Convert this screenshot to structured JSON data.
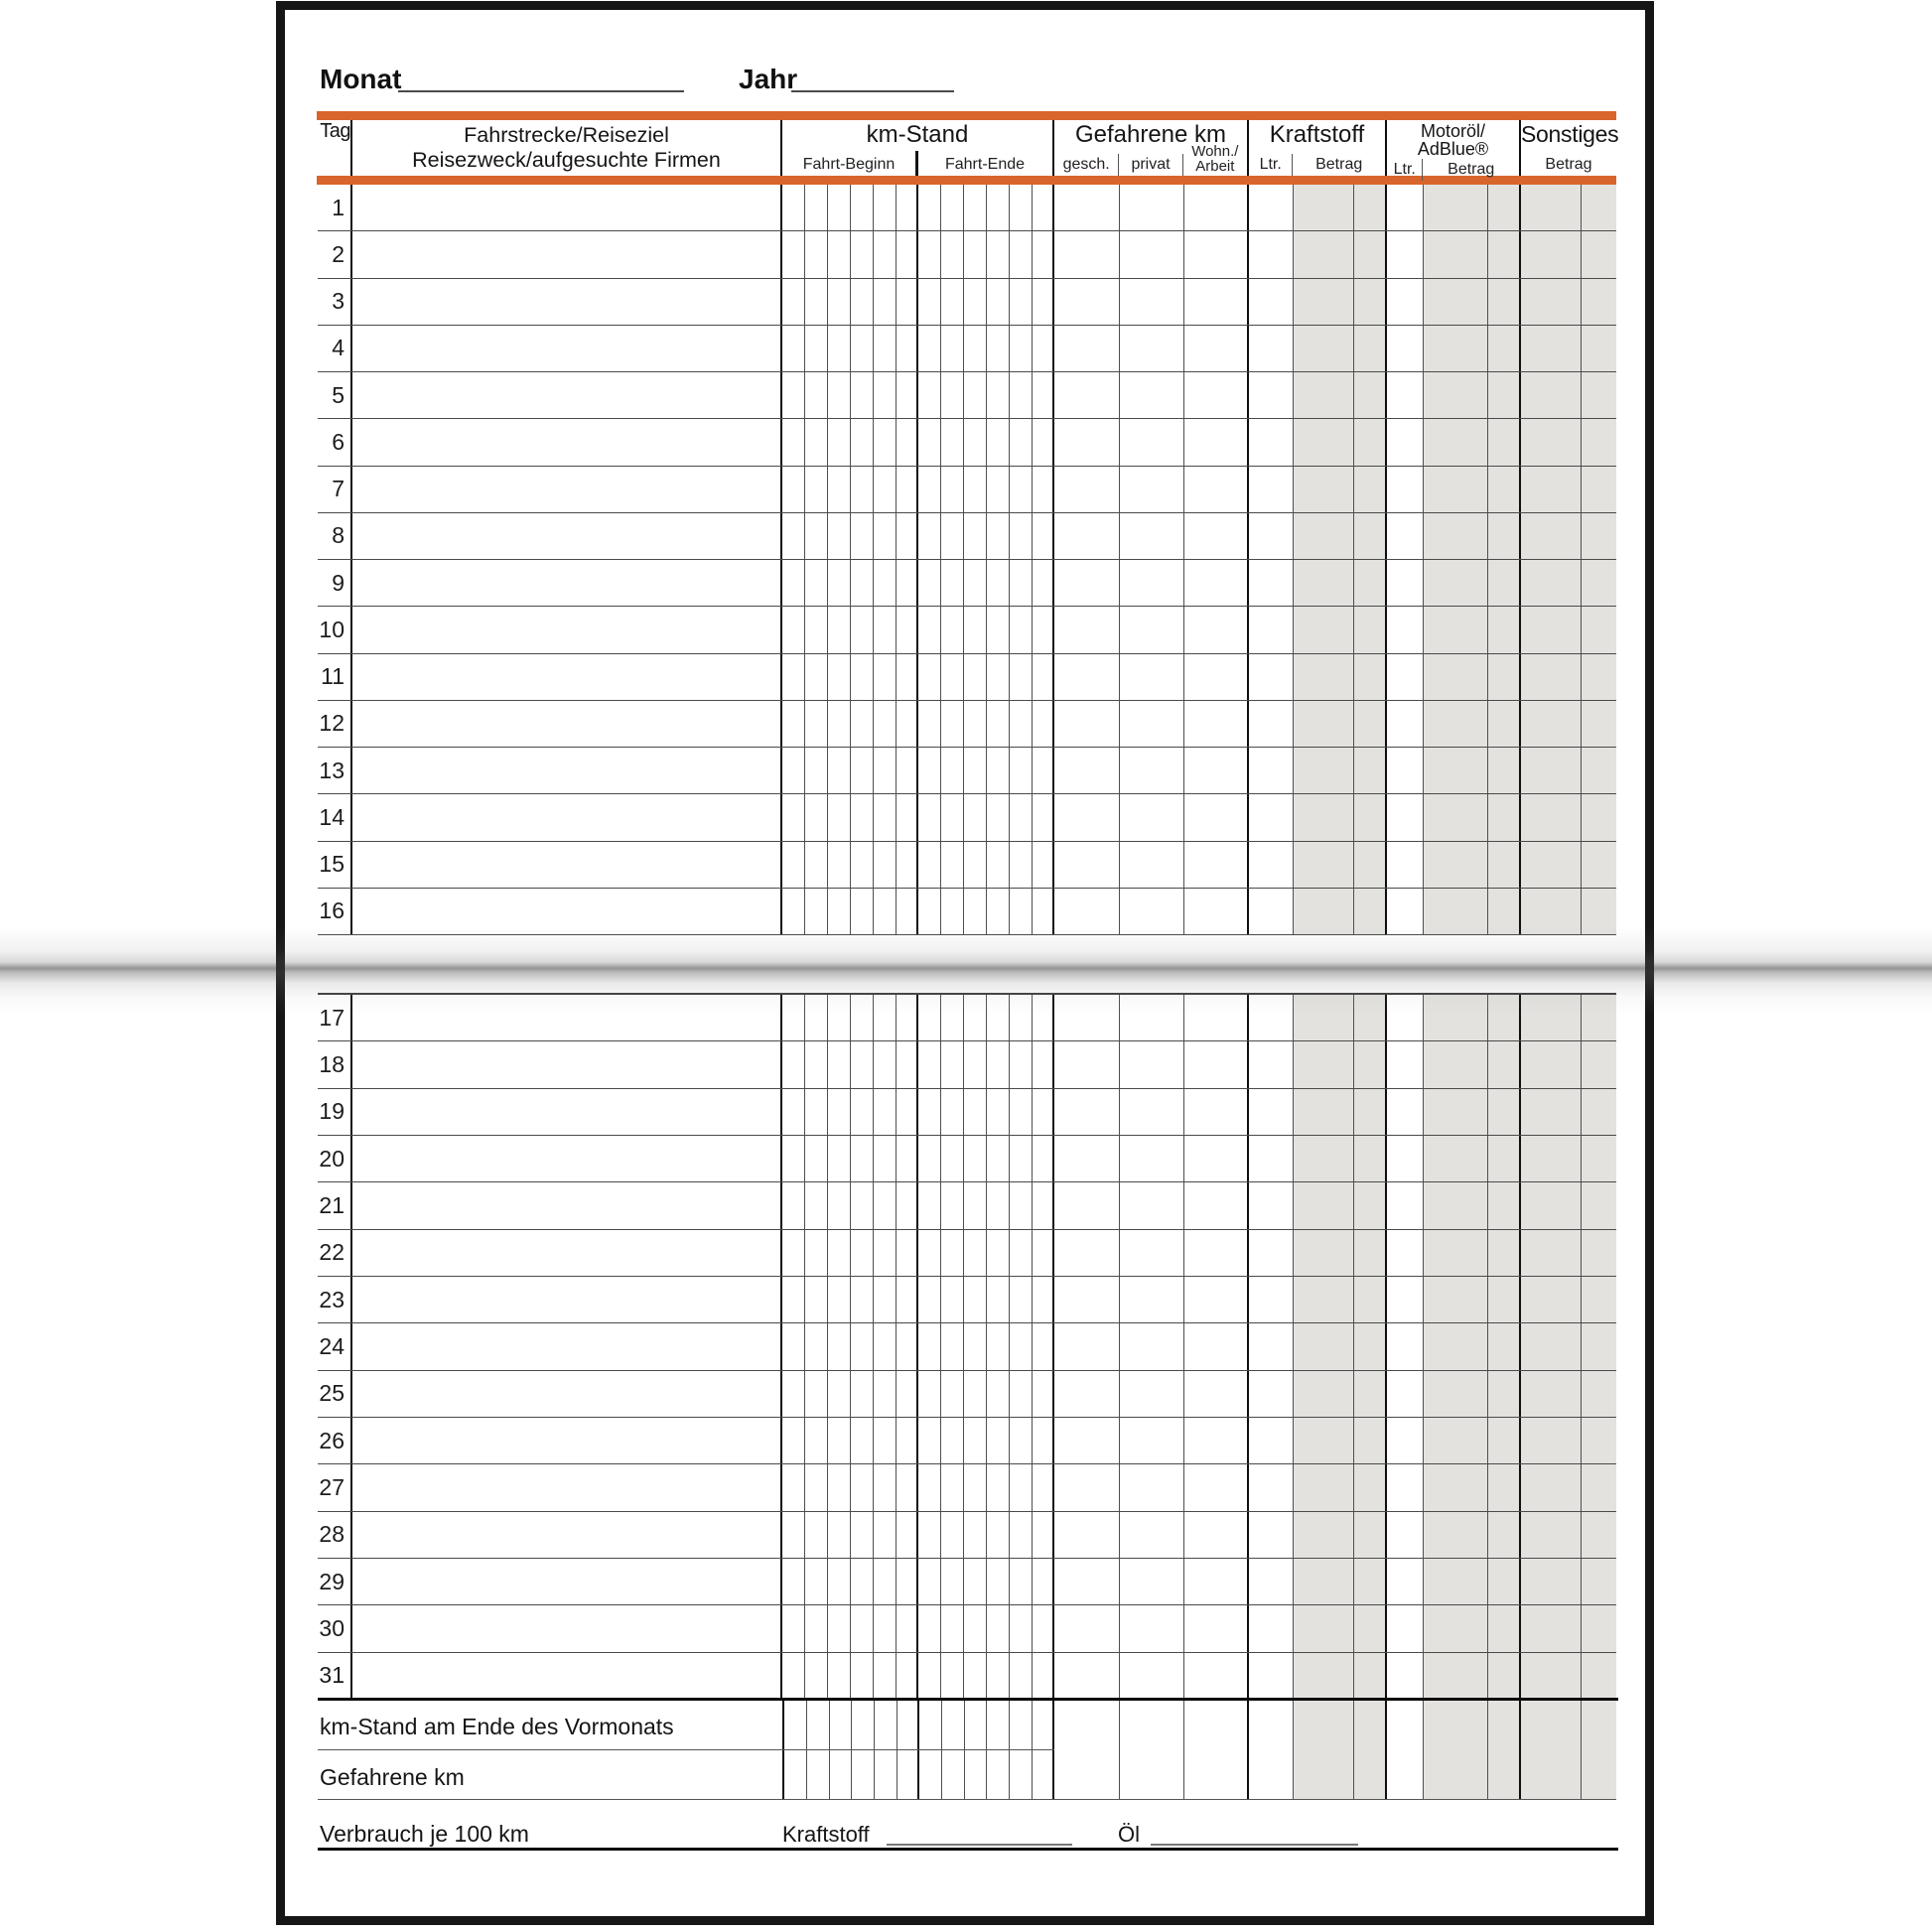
{
  "form": {
    "monat_label": "Monat",
    "jahr_label": "Jahr"
  },
  "header": {
    "tag": "Tag",
    "fahrstrecke_line1": "Fahrstrecke/Reiseziel",
    "fahrstrecke_line2": "Reisezweck/aufgesuchte Firmen",
    "km_stand": "km-Stand",
    "fahrt_beginn": "Fahrt-Beginn",
    "fahrt_ende": "Fahrt-Ende",
    "gefahrene_km": "Gefahrene km",
    "gesch": "gesch.",
    "privat": "privat",
    "wohn_arbeit_line1": "Wohn./",
    "wohn_arbeit_line2": "Arbeit",
    "kraftstoff": "Kraftstoff",
    "ltr": "Ltr.",
    "betrag": "Betrag",
    "motoroel_line1": "Motoröl/",
    "motoroel_line2": "AdBlue®",
    "sonstiges": "Sonstiges"
  },
  "days_top": [
    "1",
    "2",
    "3",
    "4",
    "5",
    "6",
    "7",
    "8",
    "9",
    "10",
    "11",
    "12",
    "13",
    "14",
    "15",
    "16"
  ],
  "days_bottom": [
    "17",
    "18",
    "19",
    "20",
    "21",
    "22",
    "23",
    "24",
    "25",
    "26",
    "27",
    "28",
    "29",
    "30",
    "31"
  ],
  "footer": {
    "km_stand_vormonat": "km-Stand am Ende des Vormonats",
    "gefahrene_km": "Gefahrene km",
    "verbrauch_je_100km": "Verbrauch je 100 km",
    "kraftstoff": "Kraftstoff",
    "oel": "Öl"
  },
  "colors": {
    "accent_orange": "#d8652b",
    "shaded_column": "#e3e2df"
  }
}
